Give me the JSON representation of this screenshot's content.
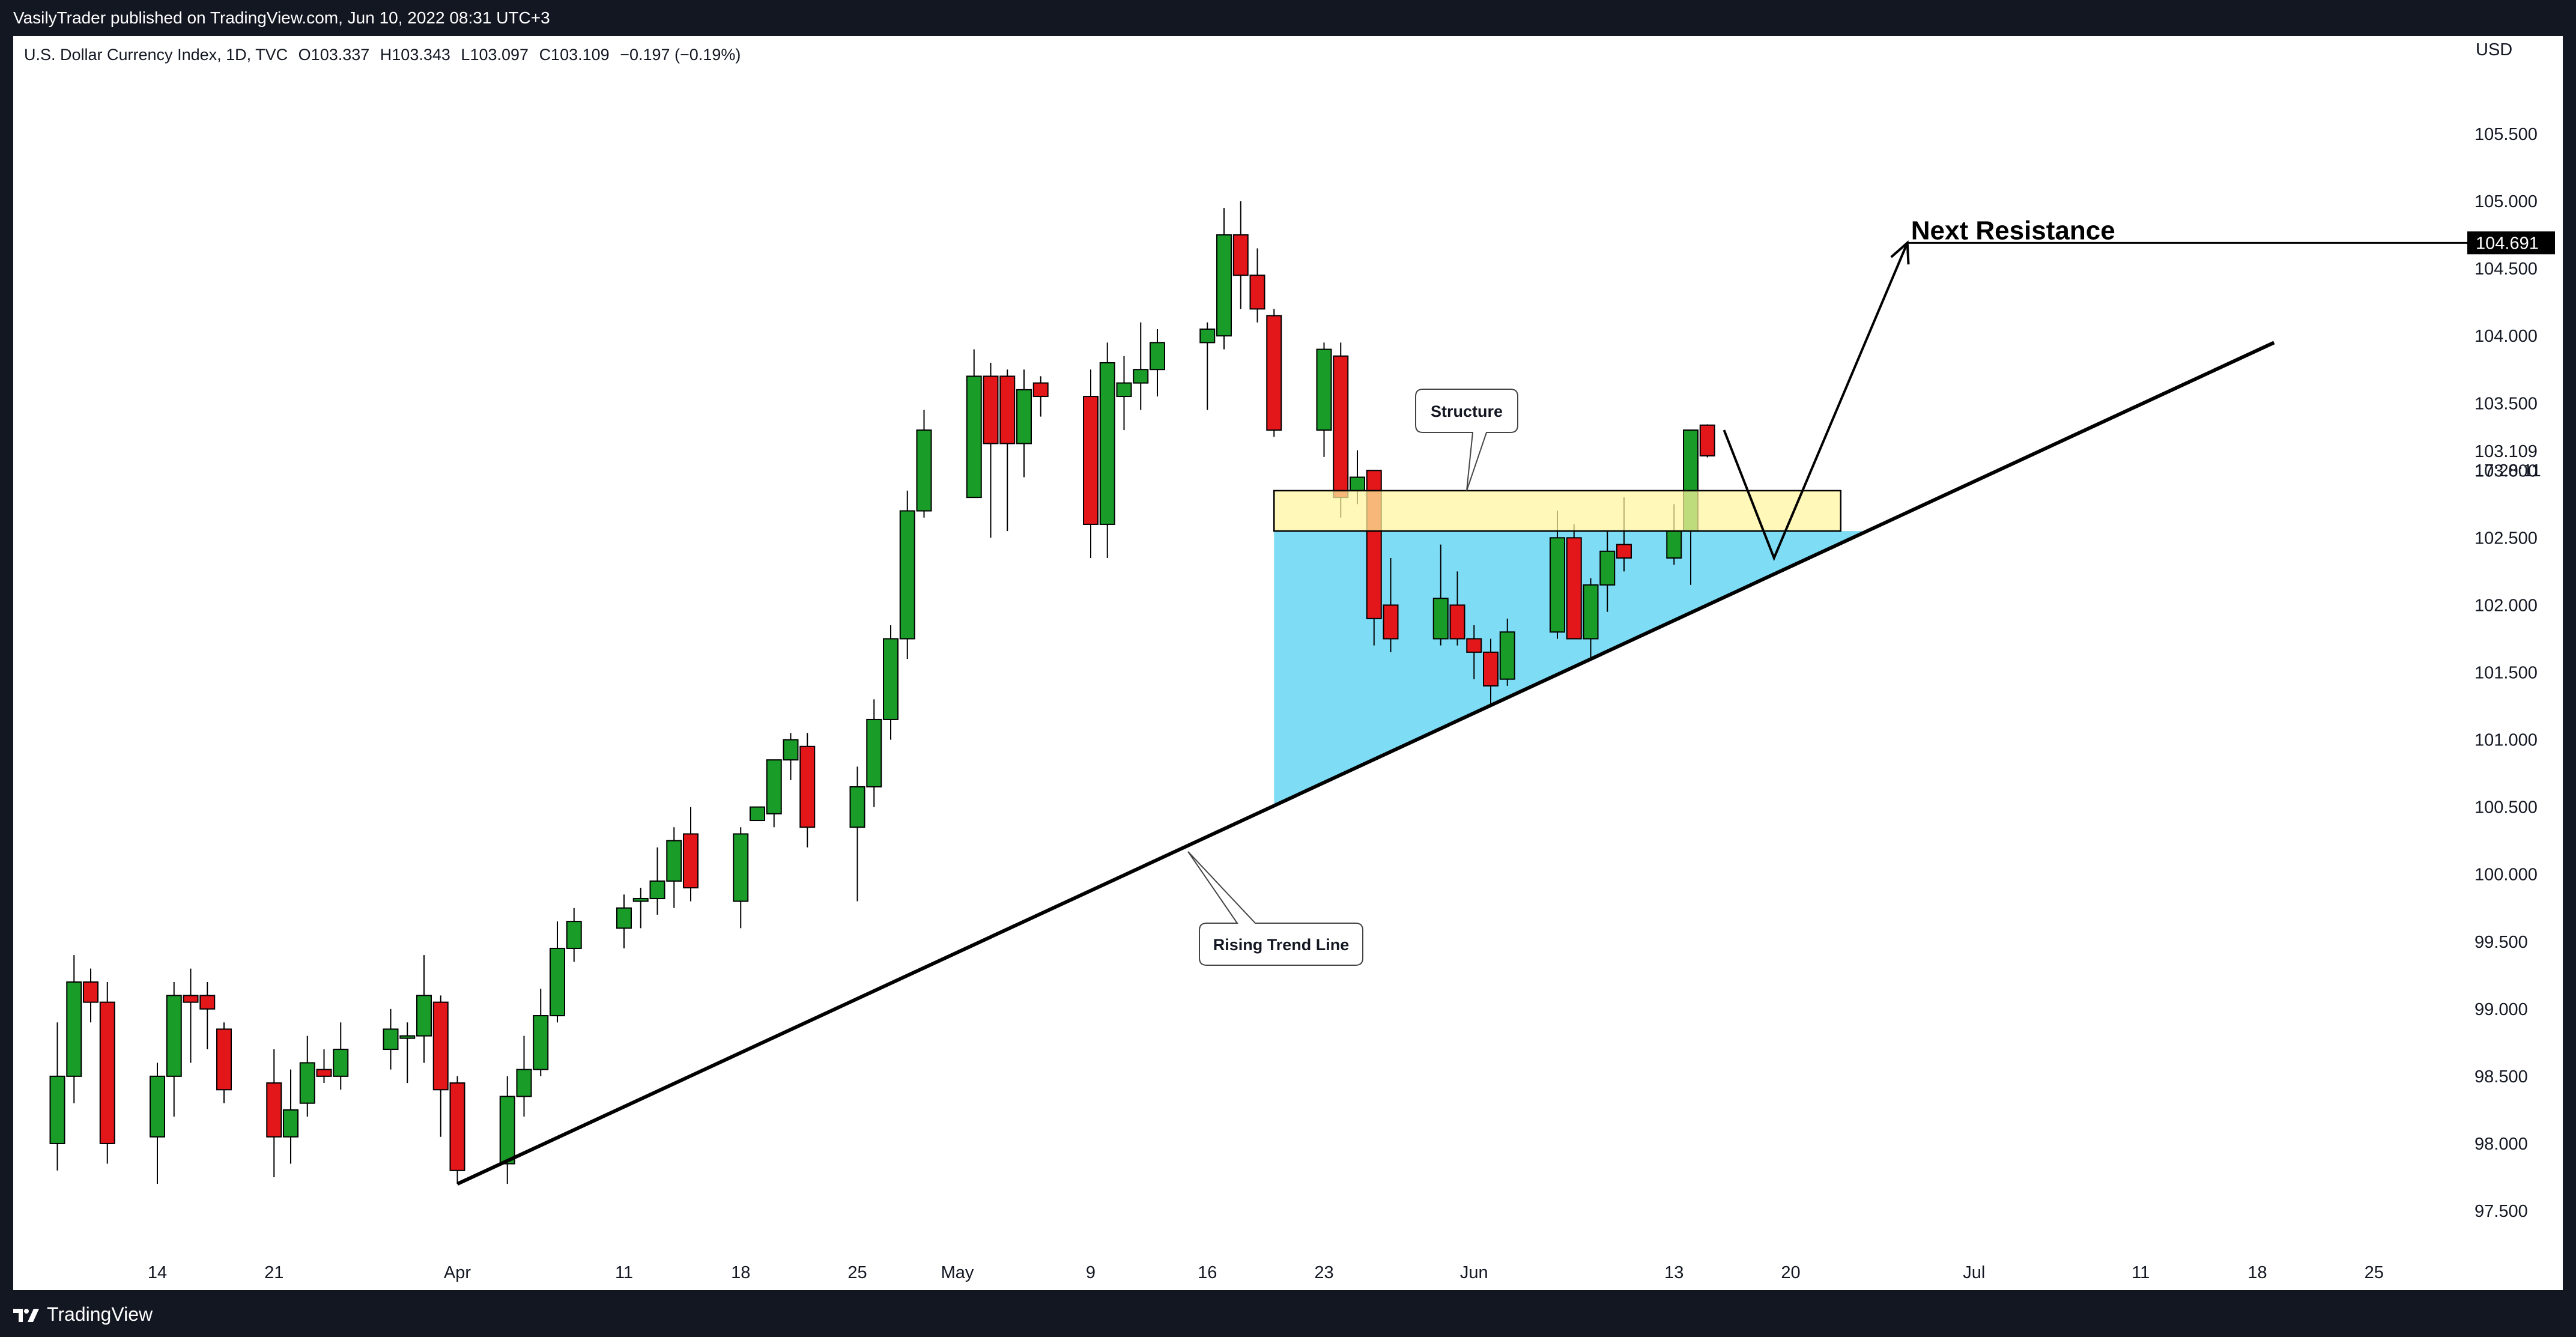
{
  "header": {
    "published_line": "VasilyTrader published on TradingView.com, Jun 10, 2022 08:31 UTC+3"
  },
  "legend": {
    "symbol": "U.S. Dollar Currency Index, 1D, TVC",
    "open": "O103.337",
    "high": "H103.343",
    "low": "L103.097",
    "close": "C103.109",
    "change": "−0.197 (−0.19%)"
  },
  "price_axis": {
    "currency": "USD",
    "current_price": "103.109",
    "countdown": "17:28:11",
    "resistance_price": "104.691"
  },
  "annotations": {
    "next_resistance": "Next Resistance",
    "structure": "Structure",
    "rising_trend_line": "Rising Trend Line"
  },
  "footer": {
    "brand": "TradingView"
  },
  "colors": {
    "up": "#1a9c29",
    "down": "#e3161a",
    "zone_fill": "#fff59d",
    "triangle_fill": "#7fdcf5",
    "background": "#ffffff",
    "strip": "#131722"
  },
  "chart_data": {
    "type": "candlestick",
    "title": "U.S. Dollar Currency Index, 1D, TVC",
    "ylabel": "USD",
    "ylim": [
      97.2,
      106.2
    ],
    "y_ticks": [
      "97.500",
      "98.000",
      "98.500",
      "99.000",
      "99.500",
      "100.000",
      "100.500",
      "101.000",
      "101.500",
      "102.000",
      "102.500",
      "103.000",
      "103.500",
      "104.000",
      "104.500",
      "105.000",
      "105.500"
    ],
    "x_ticks": [
      "14",
      "21",
      "Apr",
      "11",
      "18",
      "25",
      "May",
      "9",
      "16",
      "23",
      "Jun",
      "13",
      "20",
      "Jul",
      "11",
      "18",
      "25"
    ],
    "x_tick_dates": [
      "2022-03-14",
      "2022-03-21",
      "2022-04-01",
      "2022-04-11",
      "2022-04-18",
      "2022-04-25",
      "2022-05-01",
      "2022-05-09",
      "2022-05-16",
      "2022-05-23",
      "2022-06-01",
      "2022-06-13",
      "2022-06-20",
      "2022-07-01",
      "2022-07-11",
      "2022-07-18",
      "2022-07-25"
    ],
    "candles": [
      {
        "date": "2022-03-08",
        "open": 98.0,
        "high": 98.9,
        "low": 97.8,
        "close": 98.5
      },
      {
        "date": "2022-03-09",
        "open": 98.5,
        "high": 99.4,
        "low": 98.3,
        "close": 99.2
      },
      {
        "date": "2022-03-10",
        "open": 99.2,
        "high": 99.3,
        "low": 98.9,
        "close": 99.05
      },
      {
        "date": "2022-03-11",
        "open": 99.05,
        "high": 99.2,
        "low": 97.85,
        "close": 98.0
      },
      {
        "date": "2022-03-14",
        "open": 98.05,
        "high": 98.6,
        "low": 97.7,
        "close": 98.5
      },
      {
        "date": "2022-03-15",
        "open": 98.5,
        "high": 99.2,
        "low": 98.2,
        "close": 99.1
      },
      {
        "date": "2022-03-16",
        "open": 99.1,
        "high": 99.3,
        "low": 98.6,
        "close": 99.05
      },
      {
        "date": "2022-03-17",
        "open": 99.1,
        "high": 99.2,
        "low": 98.7,
        "close": 99.0
      },
      {
        "date": "2022-03-18",
        "open": 98.85,
        "high": 98.9,
        "low": 98.3,
        "close": 98.4
      },
      {
        "date": "2022-03-21",
        "open": 98.45,
        "high": 98.7,
        "low": 97.75,
        "close": 98.05
      },
      {
        "date": "2022-03-22",
        "open": 98.05,
        "high": 98.55,
        "low": 97.85,
        "close": 98.25
      },
      {
        "date": "2022-03-23",
        "open": 98.3,
        "high": 98.8,
        "low": 98.2,
        "close": 98.6
      },
      {
        "date": "2022-03-24",
        "open": 98.55,
        "high": 98.7,
        "low": 98.45,
        "close": 98.5
      },
      {
        "date": "2022-03-25",
        "open": 98.5,
        "high": 98.9,
        "low": 98.4,
        "close": 98.7
      },
      {
        "date": "2022-03-28",
        "open": 98.7,
        "high": 99.0,
        "low": 98.55,
        "close": 98.85
      },
      {
        "date": "2022-03-29",
        "open": 98.8,
        "high": 98.9,
        "low": 98.45,
        "close": 98.8
      },
      {
        "date": "2022-03-30",
        "open": 98.8,
        "high": 99.4,
        "low": 98.6,
        "close": 99.1
      },
      {
        "date": "2022-03-31",
        "open": 99.05,
        "high": 99.1,
        "low": 98.05,
        "close": 98.4
      },
      {
        "date": "2022-04-01",
        "open": 98.45,
        "high": 98.5,
        "low": 97.7,
        "close": 97.8
      },
      {
        "date": "2022-04-04",
        "open": 97.85,
        "high": 98.5,
        "low": 97.7,
        "close": 98.35
      },
      {
        "date": "2022-04-05",
        "open": 98.35,
        "high": 98.8,
        "low": 98.2,
        "close": 98.55
      },
      {
        "date": "2022-04-06",
        "open": 98.55,
        "high": 99.15,
        "low": 98.5,
        "close": 98.95
      },
      {
        "date": "2022-04-07",
        "open": 98.95,
        "high": 99.65,
        "low": 98.9,
        "close": 99.45
      },
      {
        "date": "2022-04-08",
        "open": 99.45,
        "high": 99.75,
        "low": 99.35,
        "close": 99.65
      },
      {
        "date": "2022-04-11",
        "open": 99.6,
        "high": 99.85,
        "low": 99.45,
        "close": 99.75
      },
      {
        "date": "2022-04-12",
        "open": 99.8,
        "high": 99.9,
        "low": 99.6,
        "close": 99.82
      },
      {
        "date": "2022-04-13",
        "open": 99.82,
        "high": 100.2,
        "low": 99.7,
        "close": 99.95
      },
      {
        "date": "2022-04-14",
        "open": 99.95,
        "high": 100.35,
        "low": 99.75,
        "close": 100.25
      },
      {
        "date": "2022-04-15",
        "open": 100.3,
        "high": 100.5,
        "low": 99.8,
        "close": 99.9
      },
      {
        "date": "2022-04-18",
        "open": 99.8,
        "high": 100.35,
        "low": 99.6,
        "close": 100.3
      },
      {
        "date": "2022-04-19",
        "open": 100.4,
        "high": 100.5,
        "low": 100.4,
        "close": 100.5
      },
      {
        "date": "2022-04-20",
        "open": 100.45,
        "high": 100.8,
        "low": 100.35,
        "close": 100.85
      },
      {
        "date": "2022-04-21",
        "open": 100.85,
        "high": 101.05,
        "low": 100.7,
        "close": 101.0
      },
      {
        "date": "2022-04-22",
        "open": 100.95,
        "high": 101.05,
        "low": 100.2,
        "close": 100.35
      },
      {
        "date": "2022-04-25",
        "open": 100.35,
        "high": 100.8,
        "low": 99.8,
        "close": 100.65
      },
      {
        "date": "2022-04-26",
        "open": 100.65,
        "high": 101.3,
        "low": 100.5,
        "close": 101.15
      },
      {
        "date": "2022-04-27",
        "open": 101.15,
        "high": 101.85,
        "low": 101.0,
        "close": 101.75
      },
      {
        "date": "2022-04-28",
        "open": 101.75,
        "high": 102.85,
        "low": 101.6,
        "close": 102.7
      },
      {
        "date": "2022-04-29",
        "open": 102.7,
        "high": 103.45,
        "low": 102.65,
        "close": 103.3
      },
      {
        "date": "2022-05-02",
        "open": 102.8,
        "high": 103.9,
        "low": 102.8,
        "close": 103.7
      },
      {
        "date": "2022-05-03",
        "open": 103.7,
        "high": 103.8,
        "low": 102.5,
        "close": 103.2
      },
      {
        "date": "2022-05-04",
        "open": 103.7,
        "high": 103.75,
        "low": 102.55,
        "close": 103.2
      },
      {
        "date": "2022-05-05",
        "open": 103.2,
        "high": 103.75,
        "low": 102.95,
        "close": 103.6
      },
      {
        "date": "2022-05-06",
        "open": 103.65,
        "high": 103.7,
        "low": 103.4,
        "close": 103.55
      },
      {
        "date": "2022-05-09",
        "open": 103.55,
        "high": 103.75,
        "low": 102.35,
        "close": 102.6
      },
      {
        "date": "2022-05-10",
        "open": 102.6,
        "high": 103.95,
        "low": 102.35,
        "close": 103.8
      },
      {
        "date": "2022-05-11",
        "open": 103.55,
        "high": 103.85,
        "low": 103.3,
        "close": 103.65
      },
      {
        "date": "2022-05-12",
        "open": 103.65,
        "high": 104.1,
        "low": 103.45,
        "close": 103.75
      },
      {
        "date": "2022-05-13",
        "open": 103.75,
        "high": 104.05,
        "low": 103.55,
        "close": 103.95
      },
      {
        "date": "2022-05-16",
        "open": 103.95,
        "high": 104.1,
        "low": 103.45,
        "close": 104.05
      },
      {
        "date": "2022-05-17",
        "open": 104.0,
        "high": 104.95,
        "low": 103.9,
        "close": 104.75
      },
      {
        "date": "2022-05-18",
        "open": 104.75,
        "high": 105.0,
        "low": 104.2,
        "close": 104.45
      },
      {
        "date": "2022-05-19",
        "open": 104.45,
        "high": 104.65,
        "low": 104.1,
        "close": 104.2
      },
      {
        "date": "2022-05-20",
        "open": 104.15,
        "high": 104.2,
        "low": 103.25,
        "close": 103.3
      },
      {
        "date": "2022-05-23",
        "open": 103.3,
        "high": 103.95,
        "low": 103.1,
        "close": 103.9
      },
      {
        "date": "2022-05-24",
        "open": 103.85,
        "high": 103.95,
        "low": 102.65,
        "close": 102.8
      },
      {
        "date": "2022-05-25",
        "open": 102.85,
        "high": 103.15,
        "low": 102.75,
        "close": 102.95
      },
      {
        "date": "2022-05-26",
        "open": 103.0,
        "high": 103.0,
        "low": 101.7,
        "close": 101.9
      },
      {
        "date": "2022-05-27",
        "open": 102.0,
        "high": 102.35,
        "low": 101.65,
        "close": 101.75
      },
      {
        "date": "2022-05-30",
        "open": 101.75,
        "high": 102.45,
        "low": 101.7,
        "close": 102.05
      },
      {
        "date": "2022-05-31",
        "open": 102.0,
        "high": 102.25,
        "low": 101.7,
        "close": 101.75
      },
      {
        "date": "2022-06-01",
        "open": 101.75,
        "high": 101.85,
        "low": 101.45,
        "close": 101.65
      },
      {
        "date": "2022-06-02",
        "open": 101.65,
        "high": 101.75,
        "low": 101.25,
        "close": 101.4
      },
      {
        "date": "2022-06-03",
        "open": 101.45,
        "high": 101.9,
        "low": 101.4,
        "close": 101.8
      },
      {
        "date": "2022-06-06",
        "open": 101.8,
        "high": 102.7,
        "low": 101.75,
        "close": 102.5
      },
      {
        "date": "2022-06-07",
        "open": 102.5,
        "high": 102.6,
        "low": 101.75,
        "close": 101.75
      },
      {
        "date": "2022-06-08",
        "open": 101.75,
        "high": 102.2,
        "low": 101.6,
        "close": 102.15
      },
      {
        "date": "2022-06-09",
        "open": 102.15,
        "high": 102.55,
        "low": 101.95,
        "close": 102.4
      },
      {
        "date": "2022-06-10",
        "open": 102.45,
        "high": 102.8,
        "low": 102.25,
        "close": 102.35
      },
      {
        "date": "2022-06-13",
        "open": 102.35,
        "high": 102.75,
        "low": 102.3,
        "close": 102.55
      },
      {
        "date": "2022-06-14",
        "open": 102.55,
        "high": 103.3,
        "low": 102.15,
        "close": 103.3
      },
      {
        "date": "2022-06-15",
        "open": 103.337,
        "high": 103.343,
        "low": 103.097,
        "close": 103.109
      }
    ],
    "annotations": [
      {
        "type": "zone",
        "label": "Structure",
        "from": "2022-05-20",
        "to": "2022-06-23",
        "y_low": 102.55,
        "y_high": 102.85
      },
      {
        "type": "trendline",
        "label": "Rising Trend Line",
        "points": [
          {
            "date": "2022-04-01",
            "y": 97.7
          },
          {
            "date": "2022-07-19",
            "y": 103.95
          }
        ]
      },
      {
        "type": "path",
        "label": "Next Resistance",
        "points": [
          {
            "date": "2022-06-16",
            "y": 103.3
          },
          {
            "date": "2022-06-19",
            "y": 102.35
          },
          {
            "date": "2022-06-27",
            "y": 104.691
          }
        ]
      },
      {
        "type": "hline",
        "label": "Next Resistance",
        "y": 104.691,
        "from": "2022-06-27"
      }
    ]
  }
}
